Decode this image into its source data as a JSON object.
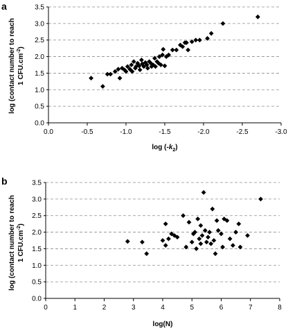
{
  "chart_data": [
    {
      "type": "scatter",
      "panel_label": "a",
      "ylabel_line1": "log (contact number to reach",
      "ylabel_line2": "1 CFU.cm",
      "ylabel_sup": "-2",
      "ylabel_end": ")",
      "xlabel_prefix": "log (-",
      "xlabel_var": "k",
      "xlabel_sub": "2",
      "xlabel_suffix": ")",
      "xlim": [
        0.0,
        -3.0
      ],
      "ylim": [
        0.0,
        3.5
      ],
      "xticks": [
        "0.0",
        "-0.5",
        "-1.0",
        "-1.5",
        "-2.0",
        "-2.5",
        "-3.0"
      ],
      "yticks": [
        "0.0",
        "0.5",
        "1.0",
        "1.5",
        "2.0",
        "2.5",
        "3.0",
        "3.5"
      ],
      "grid": "horizontal dashed",
      "marker": "diamond",
      "points": [
        [
          -0.55,
          1.35
        ],
        [
          -0.7,
          1.1
        ],
        [
          -0.76,
          1.47
        ],
        [
          -0.8,
          1.47
        ],
        [
          -0.86,
          1.55
        ],
        [
          -0.9,
          1.62
        ],
        [
          -0.92,
          1.35
        ],
        [
          -0.95,
          1.65
        ],
        [
          -0.98,
          1.6
        ],
        [
          -1.0,
          1.55
        ],
        [
          -1.02,
          1.7
        ],
        [
          -1.05,
          1.62
        ],
        [
          -1.07,
          1.75
        ],
        [
          -1.08,
          1.55
        ],
        [
          -1.1,
          1.85
        ],
        [
          -1.12,
          1.65
        ],
        [
          -1.13,
          1.7
        ],
        [
          -1.15,
          1.8
        ],
        [
          -1.17,
          1.72
        ],
        [
          -1.18,
          1.6
        ],
        [
          -1.2,
          1.9
        ],
        [
          -1.21,
          1.78
        ],
        [
          -1.23,
          1.7
        ],
        [
          -1.25,
          1.82
        ],
        [
          -1.27,
          1.75
        ],
        [
          -1.28,
          1.65
        ],
        [
          -1.3,
          1.85
        ],
        [
          -1.32,
          1.8
        ],
        [
          -1.33,
          1.7
        ],
        [
          -1.35,
          1.75
        ],
        [
          -1.37,
          1.95
        ],
        [
          -1.38,
          1.7
        ],
        [
          -1.4,
          1.85
        ],
        [
          -1.42,
          1.8
        ],
        [
          -1.43,
          2.0
        ],
        [
          -1.45,
          1.75
        ],
        [
          -1.47,
          2.05
        ],
        [
          -1.48,
          2.22
        ],
        [
          -1.5,
          1.72
        ],
        [
          -1.52,
          2.0
        ],
        [
          -1.55,
          2.05
        ],
        [
          -1.6,
          2.2
        ],
        [
          -1.65,
          2.2
        ],
        [
          -1.7,
          2.35
        ],
        [
          -1.73,
          2.3
        ],
        [
          -1.76,
          2.42
        ],
        [
          -1.78,
          2.42
        ],
        [
          -1.8,
          2.2
        ],
        [
          -1.85,
          2.45
        ],
        [
          -1.9,
          2.5
        ],
        [
          -1.95,
          2.5
        ],
        [
          -2.05,
          2.55
        ],
        [
          -2.1,
          2.7
        ],
        [
          -2.25,
          3.0
        ],
        [
          -2.7,
          3.2
        ]
      ]
    },
    {
      "type": "scatter",
      "panel_label": "b",
      "ylabel_line1": "log (contact number to reach",
      "ylabel_line2": "1 CFU.cm",
      "ylabel_sup": "-2",
      "ylabel_end": ")",
      "xlabel": "log(N)",
      "xlim": [
        0,
        8
      ],
      "ylim": [
        0.0,
        3.5
      ],
      "xticks": [
        "0",
        "1",
        "2",
        "3",
        "4",
        "5",
        "6",
        "7",
        "8"
      ],
      "yticks": [
        "0.0",
        "0.5",
        "1.0",
        "1.5",
        "2.0",
        "2.5",
        "3.0",
        "3.5"
      ],
      "grid": "horizontal dashed",
      "marker": "diamond",
      "points": [
        [
          2.8,
          1.72
        ],
        [
          3.3,
          1.7
        ],
        [
          3.45,
          1.35
        ],
        [
          4.0,
          1.75
        ],
        [
          4.1,
          2.25
        ],
        [
          4.1,
          1.6
        ],
        [
          4.2,
          1.8
        ],
        [
          4.3,
          1.95
        ],
        [
          4.4,
          1.9
        ],
        [
          4.5,
          1.85
        ],
        [
          4.7,
          2.5
        ],
        [
          4.8,
          1.55
        ],
        [
          4.9,
          2.3
        ],
        [
          5.0,
          1.7
        ],
        [
          5.05,
          1.95
        ],
        [
          5.1,
          2.0
        ],
        [
          5.15,
          1.5
        ],
        [
          5.2,
          2.4
        ],
        [
          5.25,
          1.8
        ],
        [
          5.3,
          2.2
        ],
        [
          5.3,
          1.65
        ],
        [
          5.35,
          1.9
        ],
        [
          5.4,
          3.2
        ],
        [
          5.45,
          2.05
        ],
        [
          5.5,
          1.7
        ],
        [
          5.55,
          1.85
        ],
        [
          5.6,
          2.0
        ],
        [
          5.65,
          1.65
        ],
        [
          5.7,
          2.7
        ],
        [
          5.75,
          1.75
        ],
        [
          5.8,
          1.35
        ],
        [
          5.85,
          2.35
        ],
        [
          5.9,
          2.05
        ],
        [
          6.0,
          1.95
        ],
        [
          6.05,
          1.55
        ],
        [
          6.1,
          2.4
        ],
        [
          6.2,
          2.35
        ],
        [
          6.3,
          1.8
        ],
        [
          6.4,
          1.6
        ],
        [
          6.5,
          2.0
        ],
        [
          6.6,
          2.25
        ],
        [
          6.65,
          1.55
        ],
        [
          6.9,
          1.9
        ],
        [
          7.35,
          3.0
        ]
      ]
    }
  ]
}
